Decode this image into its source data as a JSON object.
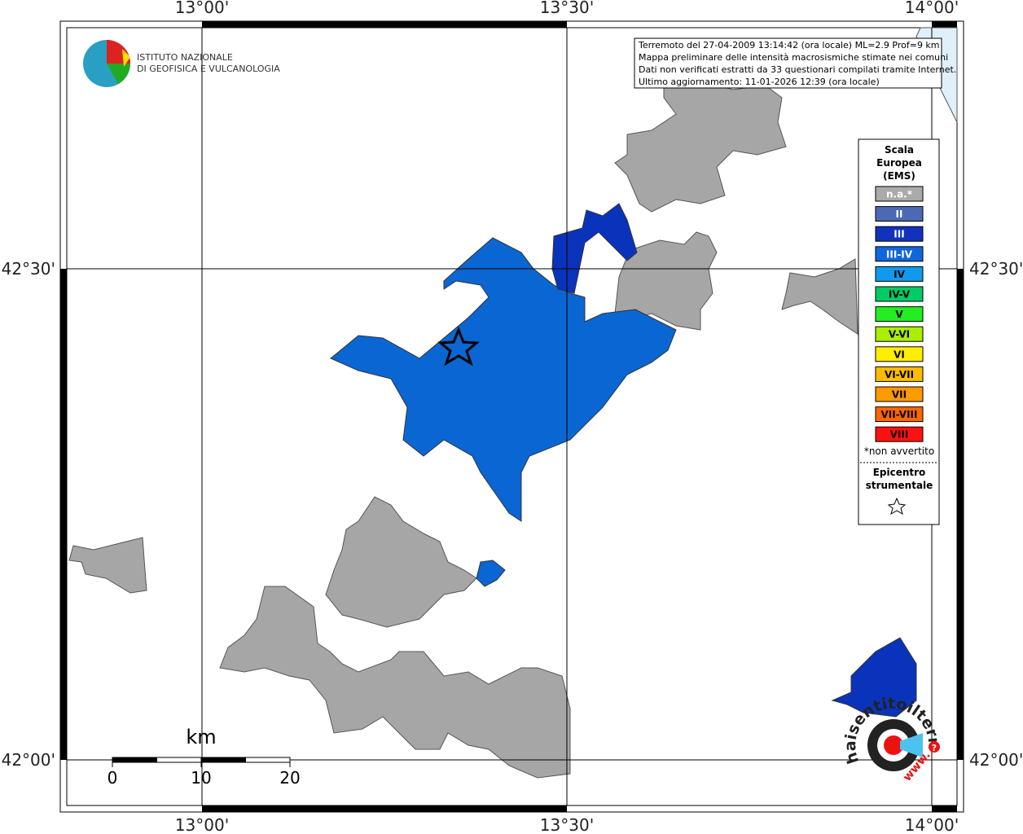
{
  "frame": {
    "lon_labels": [
      "13°00'",
      "13°30'",
      "14°00'"
    ],
    "lat_labels": [
      "42°30'",
      "42°00'"
    ]
  },
  "info": [
    "Terremoto del 27-04-2009 13:14:42 (ora locale) ML=2.9 Prof=9 km",
    "Mappa preliminare delle intensità macrosismiche stimate nei comuni",
    "Dati non verificati estratti da 33 questionari compilati tramite Internet.",
    "Ultimo aggiornamento: 11-01-2026 12:39 (ora locale)"
  ],
  "logo": {
    "line1": "ISTITUTO NAZIONALE",
    "line2": "DI GEOFISICA E VULCANOLOGIA"
  },
  "legend": {
    "title": [
      "Scala",
      "Europea",
      "(EMS)"
    ],
    "items": [
      {
        "label": "n.a.*",
        "color": "#aaaaaa"
      },
      {
        "label": "II",
        "color": "#4a6ab5"
      },
      {
        "label": "III",
        "color": "#1133bb"
      },
      {
        "label": "III-IV",
        "color": "#1166dd"
      },
      {
        "label": "IV",
        "color": "#1199ee"
      },
      {
        "label": "IV-V",
        "color": "#00cc66"
      },
      {
        "label": "V",
        "color": "#22ee22"
      },
      {
        "label": "V-VI",
        "color": "#aaee00"
      },
      {
        "label": "VI",
        "color": "#ffee00"
      },
      {
        "label": "VI-VII",
        "color": "#ffbb00"
      },
      {
        "label": "VII",
        "color": "#ff9900"
      },
      {
        "label": "VII-VIII",
        "color": "#ff6600"
      },
      {
        "label": "VIII",
        "color": "#ff1111"
      }
    ],
    "note": "*non avvertito",
    "epicenter": [
      "Epicentro",
      "strumentale"
    ]
  },
  "scale": {
    "unit": "km",
    "ticks": [
      0,
      10,
      20
    ]
  },
  "site": {
    "name": "haisentitoilterremoto.it",
    "www": "www.",
    "q": "?"
  }
}
